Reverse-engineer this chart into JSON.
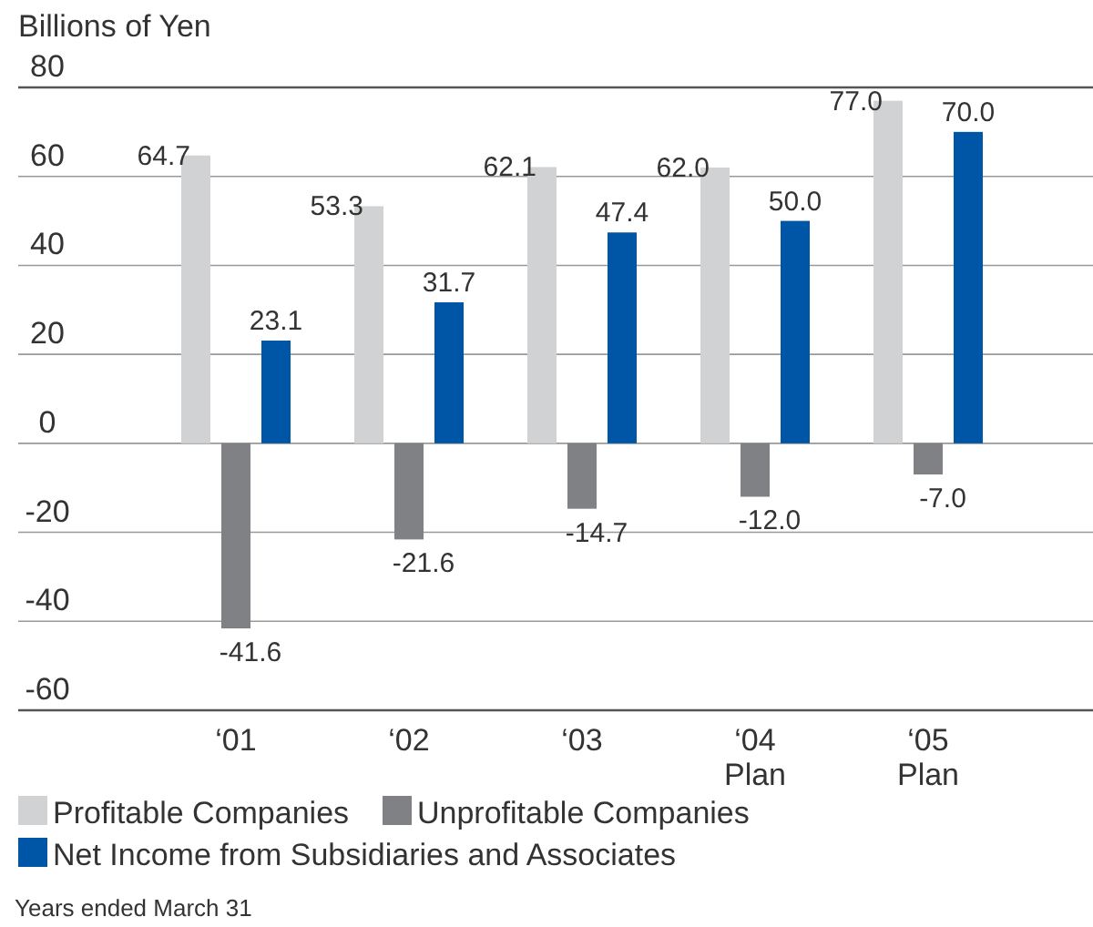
{
  "chart_data": {
    "type": "bar",
    "ylabel": "Billions of Yen",
    "categories": [
      "‘01",
      "‘02",
      "‘03",
      "‘04\nPlan",
      "‘05\nPlan"
    ],
    "series": [
      {
        "name": "Profitable Companies",
        "color": "#d1d2d4",
        "values": [
          64.7,
          53.3,
          62.1,
          62.0,
          77.0
        ],
        "value_labels": [
          "64.7",
          "53.3",
          "62.1",
          "62.0",
          "77.0"
        ]
      },
      {
        "name": "Unprofitable Companies",
        "color": "#808184",
        "values": [
          -41.6,
          -21.6,
          -14.7,
          -12.0,
          -7.0
        ],
        "value_labels": [
          "-41.6",
          "-21.6",
          "-14.7",
          "-12.0",
          "-7.0"
        ]
      },
      {
        "name": "Net Income from Subsidiaries and Associates",
        "color": "#0056a6",
        "values": [
          23.1,
          31.7,
          47.4,
          50.0,
          70.0
        ],
        "value_labels": [
          "23.1",
          "31.7",
          "47.4",
          "50.0",
          "70.0"
        ]
      }
    ],
    "ylim": [
      -60,
      80
    ],
    "yticks": [
      -60,
      -40,
      -20,
      0,
      20,
      40,
      60,
      80
    ],
    "grid": "y",
    "legend": "bottom",
    "annotations": [
      "Years ended March 31"
    ]
  }
}
